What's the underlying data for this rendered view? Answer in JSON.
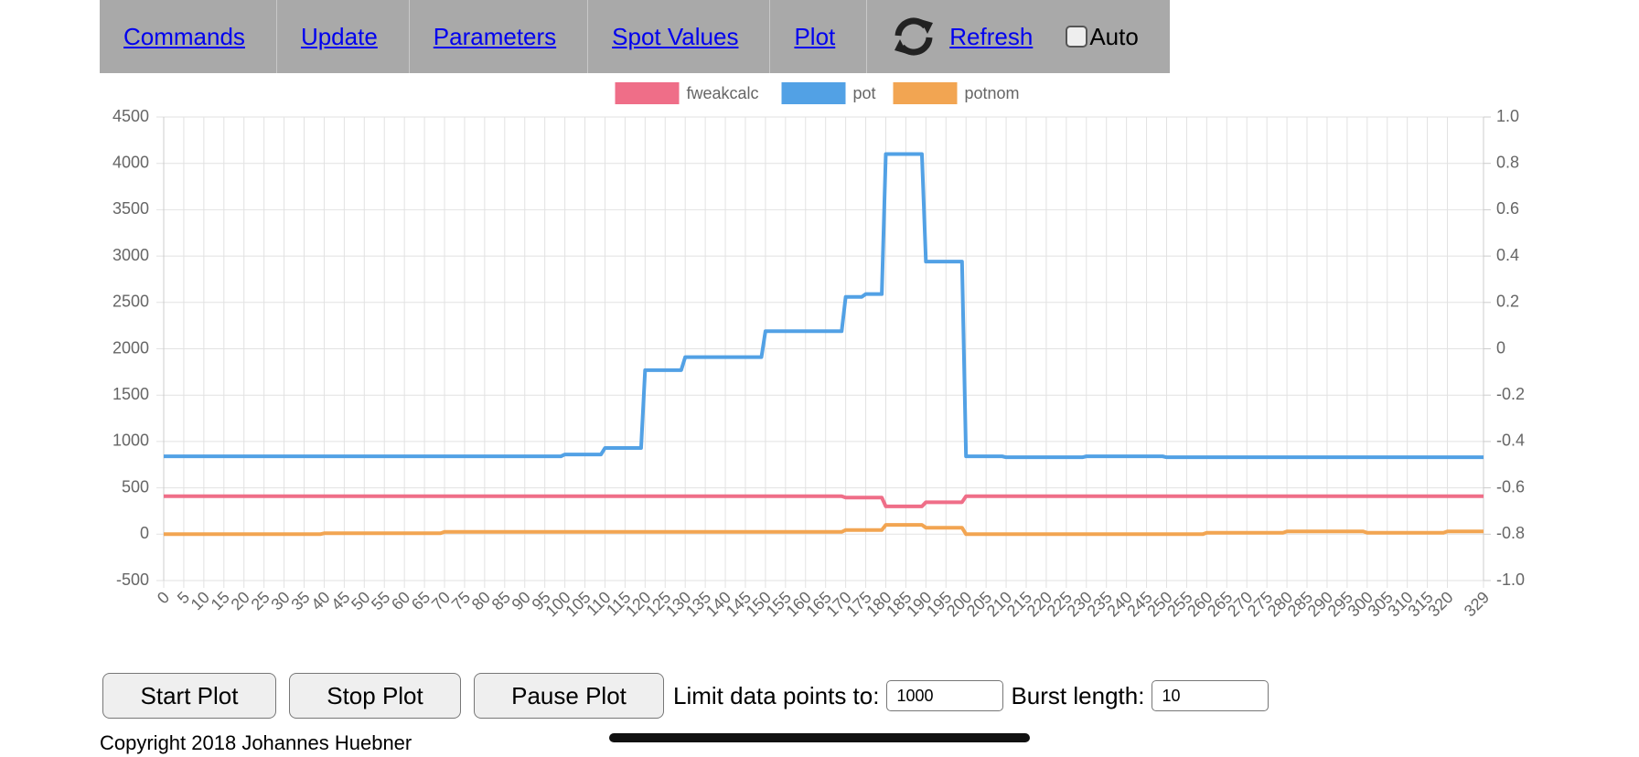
{
  "nav": {
    "items": [
      "Commands",
      "Update",
      "Parameters",
      "Spot Values",
      "Plot"
    ],
    "refresh": "Refresh",
    "auto": "Auto"
  },
  "chart_data": {
    "type": "line",
    "legend": "top",
    "grid": true,
    "x": [
      0,
      39,
      40,
      69,
      70,
      99,
      100,
      109,
      110,
      119,
      120,
      129,
      130,
      149,
      150,
      169,
      170,
      174,
      175,
      179,
      180,
      189,
      190,
      199,
      200,
      209,
      210,
      229,
      230,
      249,
      250,
      259,
      260,
      279,
      280,
      299,
      300,
      319,
      320,
      329
    ],
    "series": [
      {
        "name": "fweakcalc",
        "color": "#ef6e88",
        "values": [
          410,
          410,
          410,
          410,
          410,
          410,
          410,
          410,
          410,
          410,
          410,
          410,
          410,
          410,
          410,
          410,
          395,
          395,
          395,
          395,
          300,
          300,
          345,
          345,
          410,
          410,
          410,
          410,
          410,
          410,
          410,
          410,
          410,
          410,
          410,
          410,
          410,
          410,
          410,
          410
        ]
      },
      {
        "name": "pot",
        "color": "#52a1e5",
        "values": [
          840,
          840,
          840,
          840,
          840,
          840,
          860,
          860,
          930,
          930,
          1770,
          1770,
          1910,
          1910,
          2190,
          2190,
          2560,
          2560,
          2590,
          2590,
          4100,
          4100,
          2940,
          2940,
          840,
          840,
          830,
          830,
          840,
          840,
          830,
          830,
          830,
          830,
          830,
          830,
          830,
          830,
          830,
          830
        ]
      },
      {
        "name": "potnom",
        "color": "#f2a552",
        "values": [
          0,
          0,
          10,
          10,
          25,
          25,
          25,
          25,
          25,
          25,
          25,
          25,
          25,
          25,
          25,
          25,
          45,
          45,
          45,
          45,
          100,
          100,
          70,
          70,
          0,
          0,
          0,
          0,
          0,
          0,
          0,
          0,
          15,
          15,
          30,
          30,
          15,
          15,
          30,
          30
        ]
      }
    ],
    "xlim": [
      0,
      329
    ],
    "xticks": [
      0,
      5,
      10,
      15,
      20,
      25,
      30,
      35,
      40,
      45,
      50,
      55,
      60,
      65,
      70,
      75,
      80,
      85,
      90,
      95,
      100,
      105,
      110,
      115,
      120,
      125,
      130,
      135,
      140,
      145,
      150,
      155,
      160,
      165,
      170,
      175,
      180,
      185,
      190,
      195,
      200,
      205,
      210,
      215,
      220,
      225,
      230,
      235,
      240,
      245,
      250,
      255,
      260,
      265,
      270,
      275,
      280,
      285,
      290,
      295,
      300,
      305,
      310,
      315,
      320,
      329
    ],
    "ylim": [
      -500,
      4500
    ],
    "yticks": [
      -500,
      0,
      500,
      1000,
      1500,
      2000,
      2500,
      3000,
      3500,
      4000,
      4500
    ],
    "y2lim": [
      -1,
      1
    ],
    "y2ticks": [
      {
        "value": -1,
        "label": "-1.0"
      },
      -0.8,
      -0.6,
      -0.4,
      -0.2,
      0,
      0.2,
      0.4,
      0.6,
      0.8,
      {
        "value": 1,
        "label": "1.0"
      }
    ]
  },
  "controls": {
    "buttons": [
      "Start Plot",
      "Stop Plot",
      "Pause Plot"
    ],
    "limit_label": "Limit data points to:",
    "limit_value": "1000",
    "burst_label": "Burst length:",
    "burst_value": "10"
  },
  "footer": "Copyright 2018 Johannes Huebner"
}
